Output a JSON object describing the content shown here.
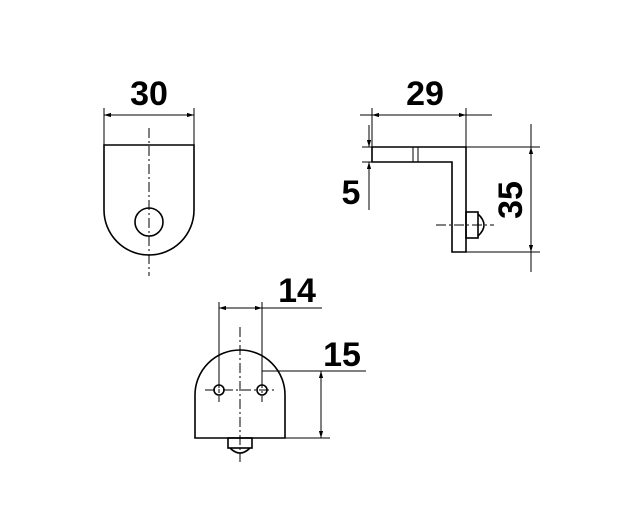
{
  "dimensions": {
    "front_view_width": "30",
    "side_view_width": "29",
    "side_view_thickness": "5",
    "side_view_height": "35",
    "bottom_view_hole_spacing": "14",
    "bottom_view_height": "15"
  }
}
